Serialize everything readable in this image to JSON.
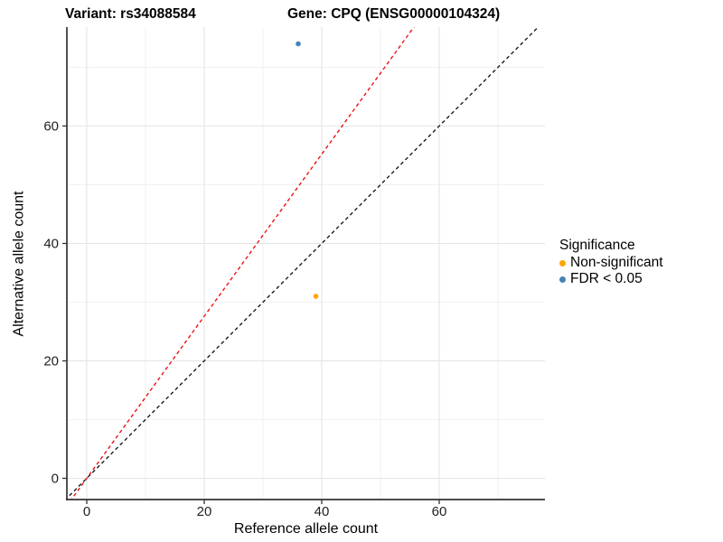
{
  "titles": {
    "variant": "Variant: rs34088584",
    "gene": "Gene: CPQ (ENSG00000104324)"
  },
  "chart_data": {
    "type": "scatter",
    "xlabel": "Reference allele count",
    "ylabel": "Alternative allele count",
    "x_major_ticks": [
      0,
      20,
      40,
      60
    ],
    "x_minor_ticks": [
      10,
      30,
      50,
      70
    ],
    "y_major_ticks": [
      0,
      20,
      40,
      60
    ],
    "y_minor_ticks": [
      10,
      30,
      50,
      70
    ],
    "xlim": [
      -3.4,
      78
    ],
    "ylim": [
      -3.6,
      76.8
    ],
    "grid": "major and minor, light gray on white panel",
    "points": [
      {
        "x": 36,
        "y": 74,
        "group": "FDR < 0.05"
      },
      {
        "x": 39,
        "y": 31,
        "group": "Non-significant"
      }
    ],
    "lines": [
      {
        "name": "identity-line",
        "slope": 1.0,
        "intercept": 0,
        "color": "#1A1A1A",
        "style": "dashed"
      },
      {
        "name": "ratio-line",
        "slope": 1.38,
        "intercept": 0,
        "color": "#EE1111",
        "style": "dashed"
      }
    ],
    "legend": {
      "title": "Significance",
      "position": "right",
      "entries": [
        {
          "label": "Non-significant",
          "color": "#FFA500"
        },
        {
          "label": "FDR < 0.05",
          "color": "#4682B4"
        }
      ]
    }
  },
  "style_colors": {
    "axis_line": "#333333",
    "tick_text": "#1F1F1F",
    "grid_major": "#E4E4E4",
    "grid_minor": "#F1F1F1"
  }
}
